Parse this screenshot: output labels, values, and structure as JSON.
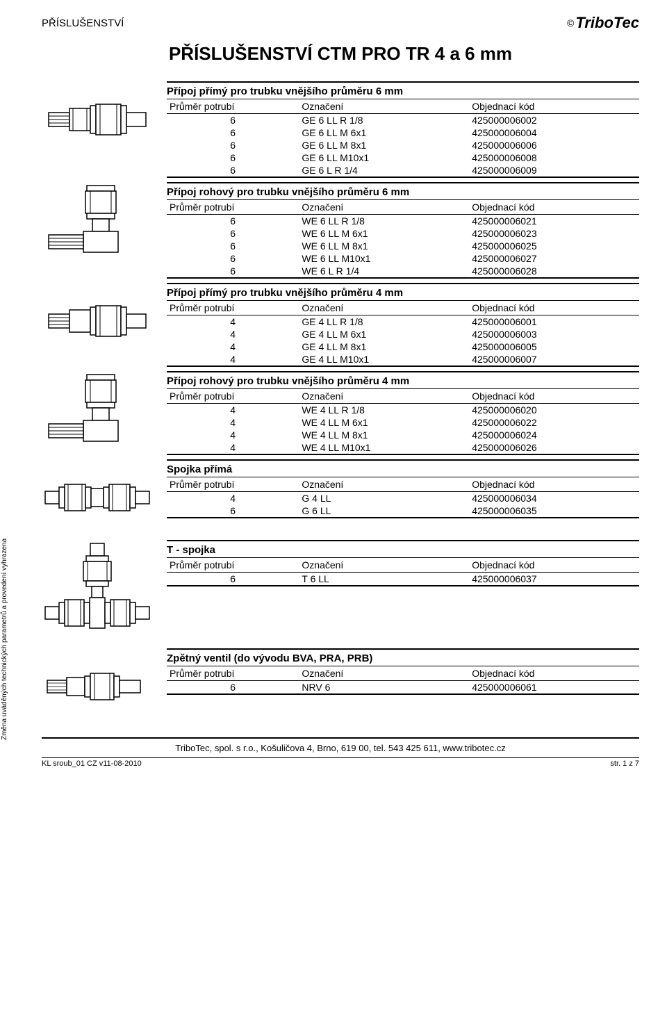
{
  "header": {
    "section_label": "PŘÍSLUŠENSTVÍ",
    "brand": "TriboTec",
    "copyright": "©"
  },
  "title": "PŘÍSLUŠENSTVÍ CTM PRO TR 4 a 6 mm",
  "columns": {
    "c0": "Průměr potrubí",
    "c1": "Označení",
    "c2": "Objednací kód"
  },
  "sections": [
    {
      "id": "s1",
      "title": "Přípoj přímý pro trubku vnějšího průměru 6 mm",
      "rows": [
        [
          "6",
          "GE 6 LL R 1/8",
          "425000006002"
        ],
        [
          "6",
          "GE 6 LL M 6x1",
          "425000006004"
        ],
        [
          "6",
          "GE 6 LL M 8x1",
          "425000006006"
        ],
        [
          "6",
          "GE 6 LL M10x1",
          "425000006008"
        ],
        [
          "6",
          "GE 6 L R 1/4",
          "425000006009"
        ]
      ]
    },
    {
      "id": "s2",
      "title": "Přípoj rohový pro trubku vnějšího průměru 6 mm",
      "rows": [
        [
          "6",
          "WE 6 LL R 1/8",
          "425000006021"
        ],
        [
          "6",
          "WE 6 LL M 6x1",
          "425000006023"
        ],
        [
          "6",
          "WE 6 LL M 8x1",
          "425000006025"
        ],
        [
          "6",
          "WE 6 LL M10x1",
          "425000006027"
        ],
        [
          "6",
          "WE 6 L R 1/4",
          "425000006028"
        ]
      ]
    },
    {
      "id": "s3",
      "title": "Přípoj přímý pro trubku vnějšího průměru 4 mm",
      "rows": [
        [
          "4",
          "GE 4 LL R 1/8",
          "425000006001"
        ],
        [
          "4",
          "GE 4 LL M 6x1",
          "425000006003"
        ],
        [
          "4",
          "GE 4 LL M 8x1",
          "425000006005"
        ],
        [
          "4",
          "GE 4 LL M10x1",
          "425000006007"
        ]
      ]
    },
    {
      "id": "s4",
      "title": "Přípoj rohový pro trubku vnějšího průměru 4 mm",
      "rows": [
        [
          "4",
          "WE 4 LL R 1/8",
          "425000006020"
        ],
        [
          "4",
          "WE 4 LL M 6x1",
          "425000006022"
        ],
        [
          "4",
          "WE 4 LL M 8x1",
          "425000006024"
        ],
        [
          "4",
          "WE 4 LL M10x1",
          "425000006026"
        ]
      ]
    },
    {
      "id": "s5",
      "title": "Spojka přímá",
      "rows": [
        [
          "4",
          "G 4 LL",
          "425000006034"
        ],
        [
          "6",
          "G 6 LL",
          "425000006035"
        ]
      ]
    },
    {
      "id": "s6",
      "title": "T - spojka",
      "rows": [
        [
          "6",
          "T 6 LL",
          "425000006037"
        ]
      ]
    },
    {
      "id": "s7",
      "title": "Zpětný ventil (do vývodu BVA, PRA, PRB)",
      "rows": [
        [
          "6",
          "NRV 6",
          "425000006061"
        ]
      ]
    }
  ],
  "side_note": "Změna uváděných technických parametrů a provedení vyhrazena",
  "footer": {
    "company": "TriboTec, spol. s r.o., Košuličova 4, Brno, 619 00, tel. 543 425 611, www.tribotec.cz",
    "doc": "KL sroub_01 CZ v11-08-2010",
    "page": "str. 1 z 7"
  }
}
